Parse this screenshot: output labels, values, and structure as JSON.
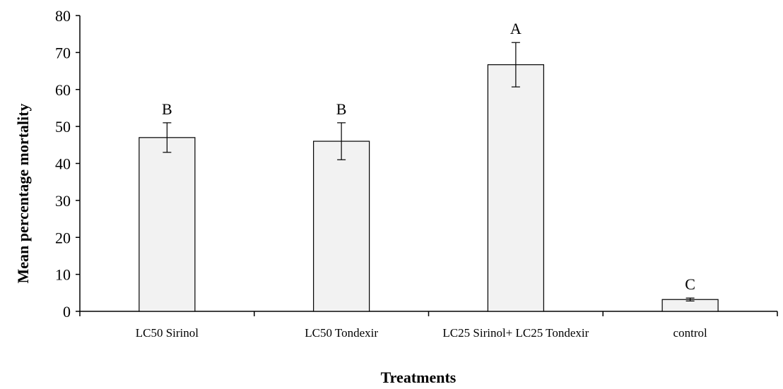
{
  "chart_data": {
    "type": "bar",
    "title": "",
    "xlabel": "Treatments",
    "ylabel": "Mean percentage mortality",
    "ylim": [
      0,
      80
    ],
    "yticks": [
      "0",
      "10",
      "20",
      "30",
      "40",
      "50",
      "60",
      "70",
      "80"
    ],
    "categories": [
      "LC50 Sirinol",
      "LC50 Tondexir",
      "LC25 Sirinol+ LC25 Tondexir",
      "control"
    ],
    "values": [
      47,
      46,
      66.7,
      3.2
    ],
    "error": [
      4,
      5,
      6,
      0.4
    ],
    "significance_letters": [
      "B",
      "B",
      "A",
      "C"
    ],
    "grid": false,
    "bar_color": "#f2f2f2"
  }
}
